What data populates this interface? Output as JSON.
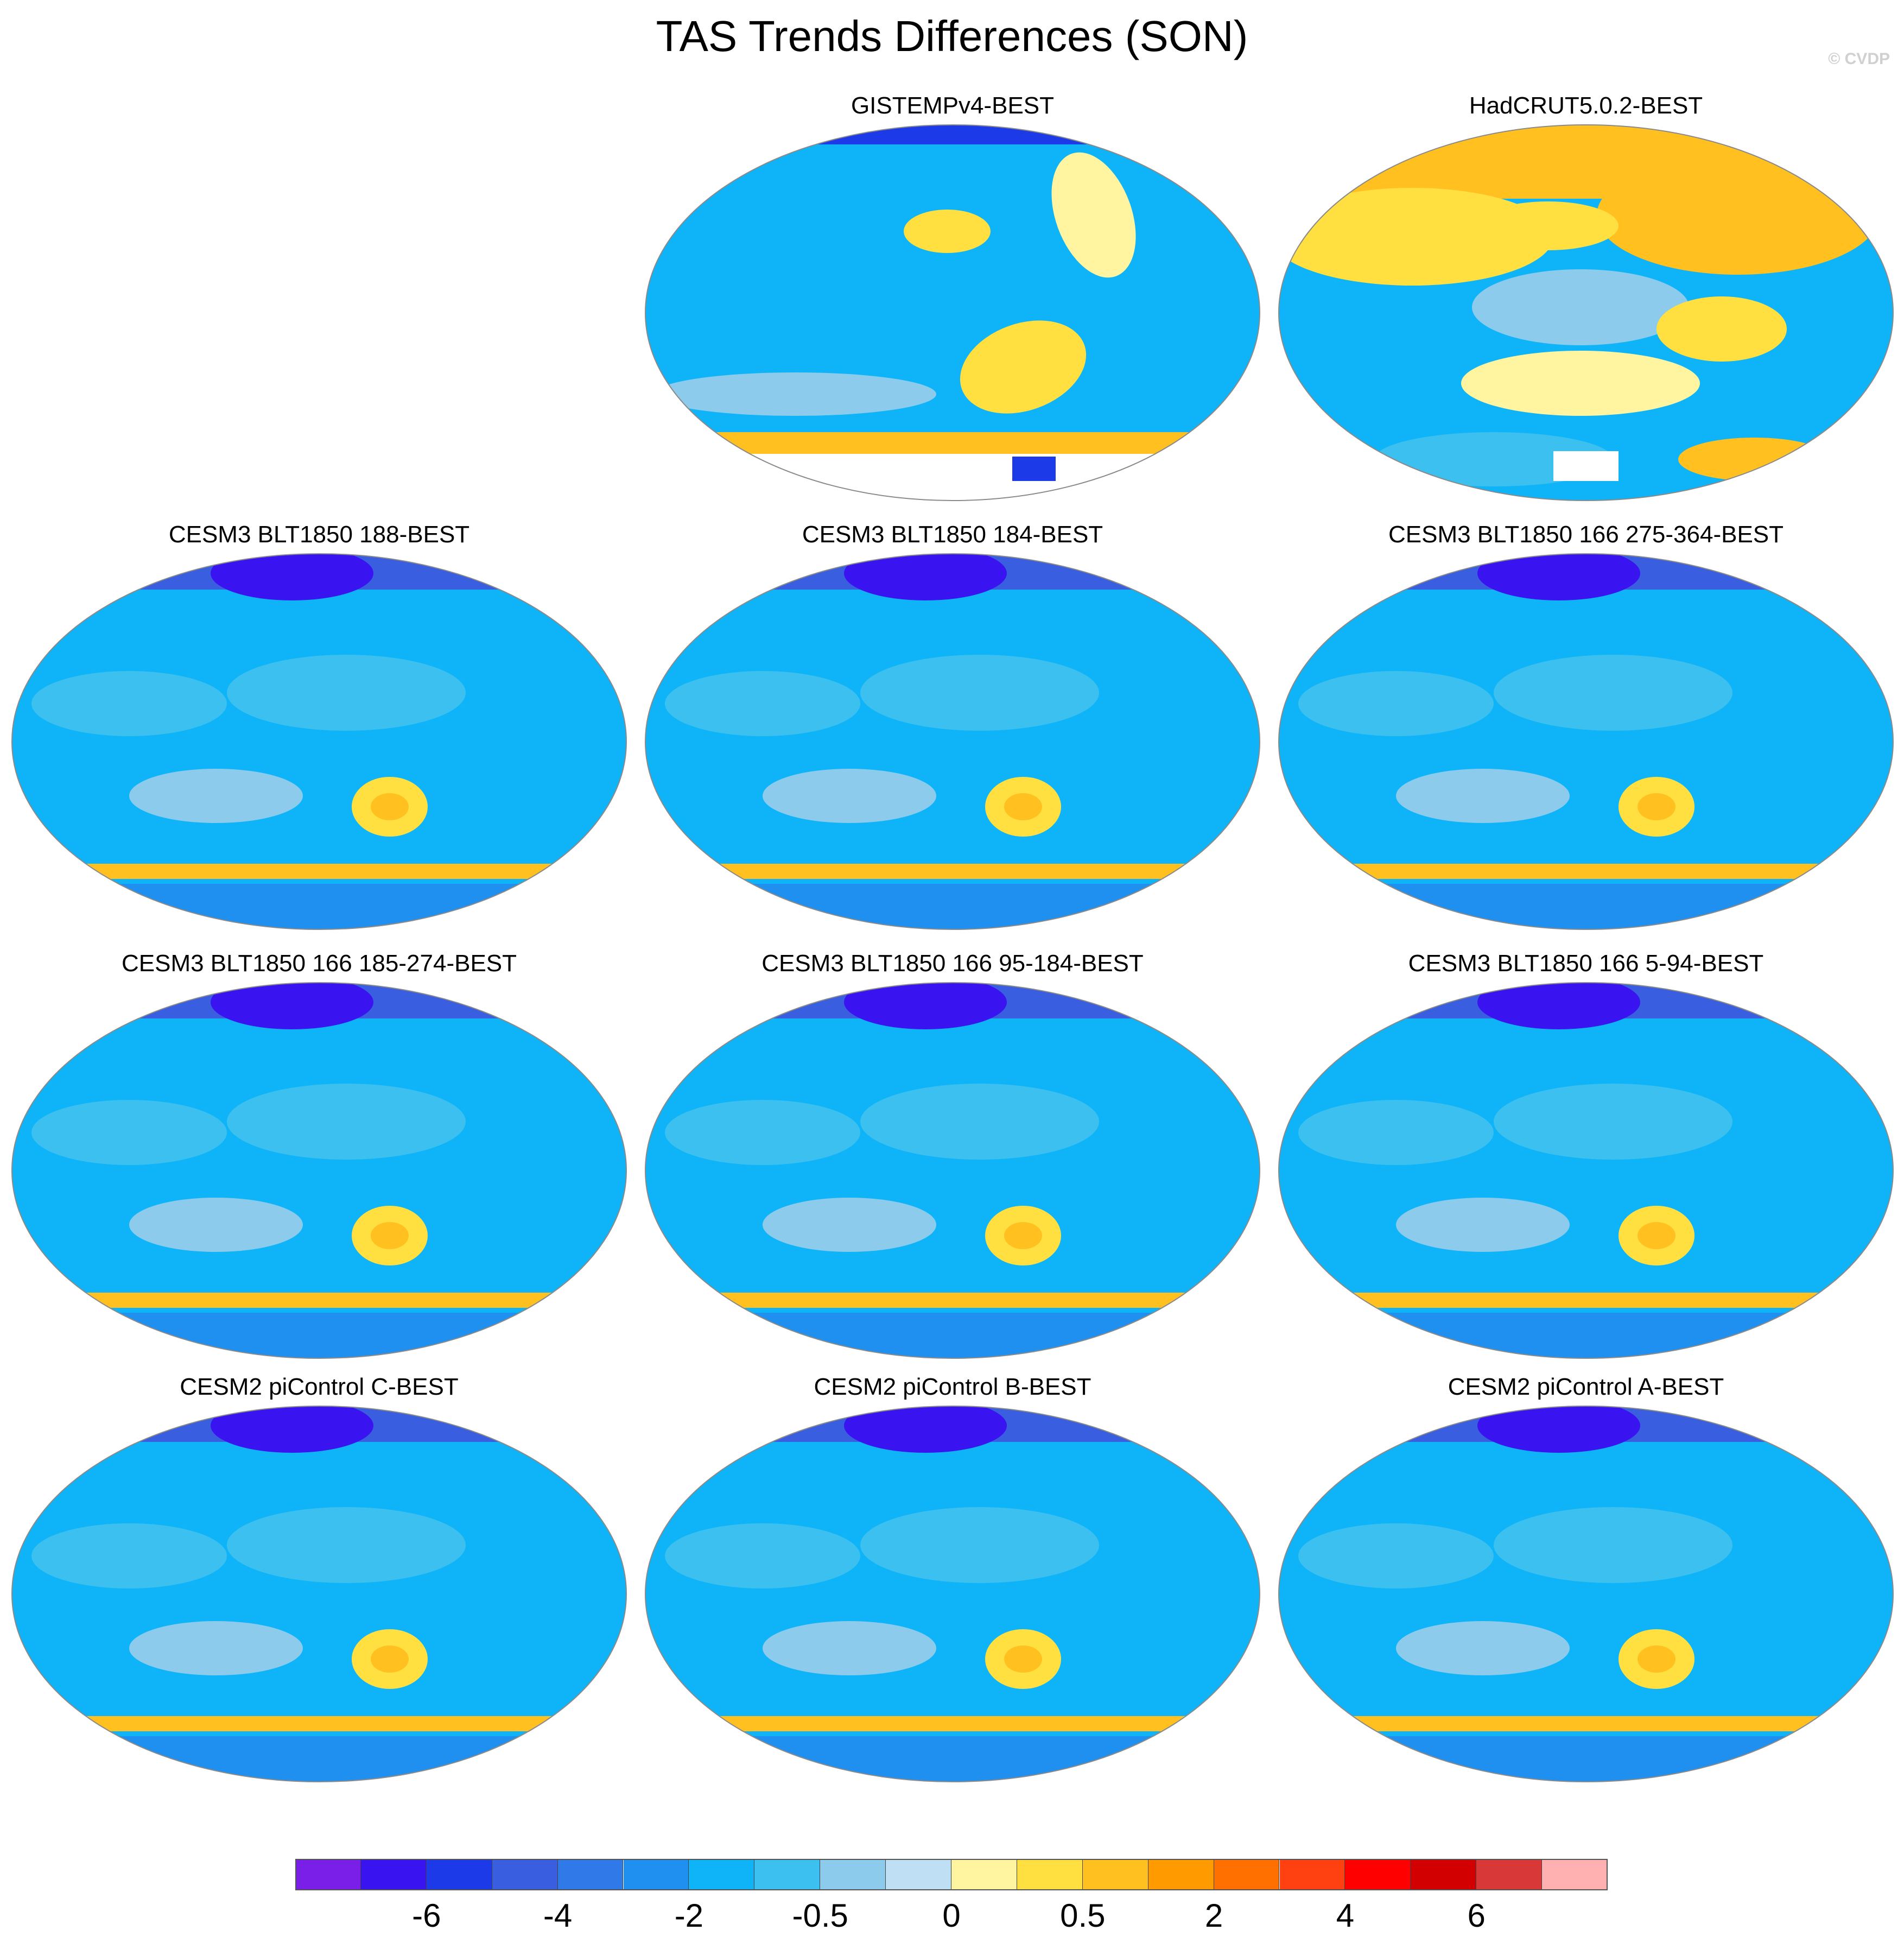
{
  "title": "TAS Trends Differences (SON)",
  "credit": "© CVDP",
  "panels": [
    {
      "title": "GISTEMPv4-BEST",
      "variant": "gistemp"
    },
    {
      "title": "HadCRUT5.0.2-BEST",
      "variant": "hadcrut"
    },
    {
      "title": "CESM3 BLT1850 188-BEST",
      "variant": "model"
    },
    {
      "title": "CESM3 BLT1850 184-BEST",
      "variant": "model"
    },
    {
      "title": "CESM3 BLT1850 166 275-364-BEST",
      "variant": "model"
    },
    {
      "title": "CESM3 BLT1850 166 185-274-BEST",
      "variant": "model"
    },
    {
      "title": "CESM3 BLT1850 166 95-184-BEST",
      "variant": "model"
    },
    {
      "title": "CESM3 BLT1850 166 5-94-BEST",
      "variant": "model"
    },
    {
      "title": "CESM2 piControl C-BEST",
      "variant": "model"
    },
    {
      "title": "CESM2 piControl B-BEST",
      "variant": "model"
    },
    {
      "title": "CESM2 piControl A-BEST",
      "variant": "model"
    }
  ],
  "colorbar": {
    "colors": [
      "#7a1fe8",
      "#3a14f0",
      "#1c3ae8",
      "#3a5ee0",
      "#2f7ae8",
      "#1f90f0",
      "#0fb4f8",
      "#3cc0f0",
      "#8ccbec",
      "#bfe0f4",
      "#fff5a0",
      "#ffe040",
      "#ffc020",
      "#ff9a00",
      "#ff7000",
      "#ff4010",
      "#ff0000",
      "#d20000",
      "#d83838",
      "#ffb0b0"
    ],
    "labels": [
      "-6",
      "-4",
      "-2",
      "-0.5",
      "0",
      "0.5",
      "2",
      "4",
      "6"
    ]
  }
}
